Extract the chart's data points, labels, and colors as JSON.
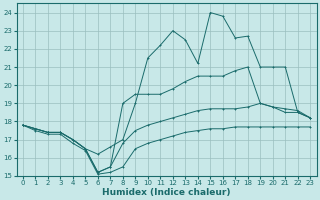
{
  "title": "",
  "xlabel": "Humidex (Indice chaleur)",
  "ylabel": "",
  "bg_color": "#c8e8e8",
  "grid_color": "#9bbfbf",
  "line_color": "#1a6b6b",
  "xlim": [
    -0.5,
    23.5
  ],
  "ylim": [
    15,
    24.5
  ],
  "xticks": [
    0,
    1,
    2,
    3,
    4,
    5,
    6,
    7,
    8,
    9,
    10,
    11,
    12,
    13,
    14,
    15,
    16,
    17,
    18,
    19,
    20,
    21,
    22,
    23
  ],
  "yticks": [
    15,
    16,
    17,
    18,
    19,
    20,
    21,
    22,
    23,
    24
  ],
  "line1_x": [
    0,
    1,
    2,
    3,
    4,
    5,
    6,
    7,
    8,
    9,
    10,
    11,
    12,
    13,
    14,
    15,
    16,
    17,
    18,
    19,
    20,
    21,
    22,
    23
  ],
  "line1_y": [
    17.8,
    17.6,
    17.4,
    17.4,
    17.0,
    16.5,
    16.2,
    16.6,
    17.0,
    19.0,
    21.5,
    22.2,
    23.0,
    22.5,
    21.2,
    24.0,
    23.8,
    22.6,
    22.7,
    21.0,
    21.0,
    21.0,
    18.5,
    18.2
  ],
  "line2_x": [
    0,
    1,
    2,
    3,
    4,
    5,
    6,
    7,
    8,
    9,
    10,
    11,
    12,
    13,
    14,
    15,
    16,
    17,
    18,
    19,
    20,
    21,
    22,
    23
  ],
  "line2_y": [
    17.8,
    17.6,
    17.4,
    17.4,
    17.0,
    16.5,
    15.2,
    15.5,
    19.0,
    19.5,
    19.5,
    19.5,
    19.8,
    20.2,
    20.5,
    20.5,
    20.5,
    20.8,
    21.0,
    19.0,
    18.8,
    18.5,
    18.5,
    18.2
  ],
  "line3_x": [
    0,
    1,
    2,
    3,
    4,
    5,
    6,
    7,
    8,
    9,
    10,
    11,
    12,
    13,
    14,
    15,
    16,
    17,
    18,
    19,
    20,
    21,
    22,
    23
  ],
  "line3_y": [
    17.8,
    17.6,
    17.4,
    17.4,
    17.0,
    16.5,
    15.2,
    15.5,
    16.8,
    17.5,
    17.8,
    18.0,
    18.2,
    18.4,
    18.6,
    18.7,
    18.7,
    18.7,
    18.8,
    19.0,
    18.8,
    18.7,
    18.6,
    18.2
  ],
  "line4_x": [
    0,
    1,
    2,
    3,
    4,
    5,
    6,
    7,
    8,
    9,
    10,
    11,
    12,
    13,
    14,
    15,
    16,
    17,
    18,
    19,
    20,
    21,
    22,
    23
  ],
  "line4_y": [
    17.8,
    17.5,
    17.3,
    17.3,
    16.8,
    16.4,
    15.1,
    15.2,
    15.5,
    16.5,
    16.8,
    17.0,
    17.2,
    17.4,
    17.5,
    17.6,
    17.6,
    17.7,
    17.7,
    17.7,
    17.7,
    17.7,
    17.7,
    17.7
  ]
}
